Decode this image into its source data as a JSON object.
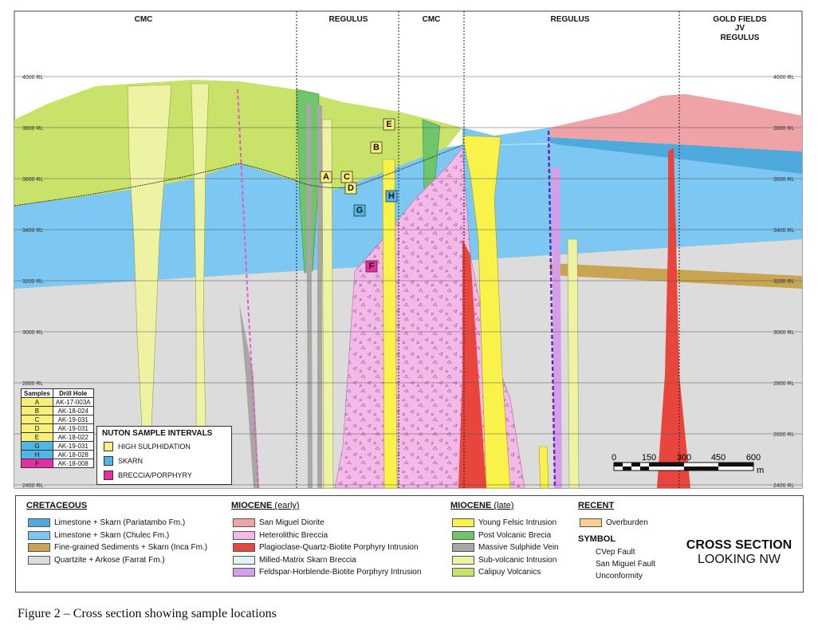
{
  "section_headers": [
    "CMC",
    "REGULUS",
    "CMC",
    "REGULUS",
    "GOLD FIELDS",
    "JV",
    "REGULUS"
  ],
  "rl_labels": [
    "4000 RL",
    "3800 RL",
    "3600 RL",
    "3400 RL",
    "3200 RL",
    "3000 RL",
    "2800 RL",
    "2600 RL",
    "2400 RL"
  ],
  "sample_markers": [
    "A",
    "B",
    "C",
    "D",
    "E",
    "F",
    "G",
    "H"
  ],
  "scale_bar": {
    "ticks": [
      "0",
      "150",
      "300",
      "450",
      "600"
    ],
    "unit": "m"
  },
  "samples_table": {
    "headers": [
      "Samples",
      "Drill Hole"
    ],
    "rows": [
      {
        "sample": "A",
        "hole": "AK-17-003A",
        "color": "#f6f07a"
      },
      {
        "sample": "B",
        "hole": "AK-18-024",
        "color": "#f6f07a"
      },
      {
        "sample": "C",
        "hole": "AK-19-031",
        "color": "#f6f07a"
      },
      {
        "sample": "D",
        "hole": "AK-19-031",
        "color": "#f6f07a"
      },
      {
        "sample": "E",
        "hole": "AK-18-022",
        "color": "#f6f07a"
      },
      {
        "sample": "G",
        "hole": "AK-19-031",
        "color": "#4fb6e6"
      },
      {
        "sample": "H",
        "hole": "AK-18-028",
        "color": "#4fb6e6"
      },
      {
        "sample": "F",
        "hole": "AK-18-008",
        "color": "#e62ea0"
      }
    ]
  },
  "nuton_box": {
    "title": "NUTON SAMPLE INTERVALS",
    "items": [
      {
        "label": "HIGH SULPHIDATION",
        "color": "#f6f07a"
      },
      {
        "label": "SKARN",
        "color": "#4fb6e6"
      },
      {
        "label": "BRECCIA/PORPHYRY",
        "color": "#e62ea0"
      }
    ]
  },
  "legend": {
    "cretaceous": {
      "title": "CRETACEOUS",
      "items": [
        {
          "label": "Limestone + Skarn (Pariatambo Fm.)",
          "color": "#4ea9dc"
        },
        {
          "label": "Limestone + Skarn (Chulec Fm.)",
          "color": "#7dc8f2"
        },
        {
          "label": "Fine-grained Sediments + Skarn (Inca Fm.)",
          "color": "#c9a452"
        },
        {
          "label": "Quartzite + Arkose (Farrat Fm.)",
          "color": "#dcdcdc"
        }
      ]
    },
    "miocene_early": {
      "title": "MIOCENE",
      "note": "(early)",
      "items": [
        {
          "label": "San Miguel Diorite",
          "color": "#f0a3a7"
        },
        {
          "label": "Heterolithic Breccia",
          "color": "#f3b9e8"
        },
        {
          "label": "Plagioclase-Quartz-Biotite Porphyry Intrusion",
          "color": "#e8453c"
        },
        {
          "label": "Milled-Matrix Skarn Breccia",
          "color": "#dff3f1"
        },
        {
          "label": "Feldspar-Horblende-Biotite Porphyry Intrusion",
          "color": "#d69ee9"
        }
      ]
    },
    "miocene_late": {
      "title": "MIOCENE",
      "note": "(late)",
      "items": [
        {
          "label": "Young Felsic Intrusion",
          "color": "#f8f24a"
        },
        {
          "label": "Post Volcanic Brecia",
          "color": "#6fc56b"
        },
        {
          "label": "Massive Sulphide Vein",
          "color": "#a8a7a3"
        },
        {
          "label": "Sub-volcanic Intrusion",
          "color": "#eef3a4"
        },
        {
          "label": "Calipuy Volcanics",
          "color": "#c8e26a"
        }
      ]
    },
    "recent": {
      "title": "RECENT",
      "items": [
        {
          "label": "Overburden",
          "color": "#f6d08e"
        }
      ]
    },
    "symbol": {
      "title": "SYMBOL",
      "items": [
        "CVep Fault",
        "San Miguel Fault",
        "Unconformity"
      ]
    }
  },
  "cross_section_title": {
    "line1": "CROSS SECTION",
    "line2": "LOOKING NW"
  },
  "caption": "Figure 2 – Cross section showing sample locations"
}
